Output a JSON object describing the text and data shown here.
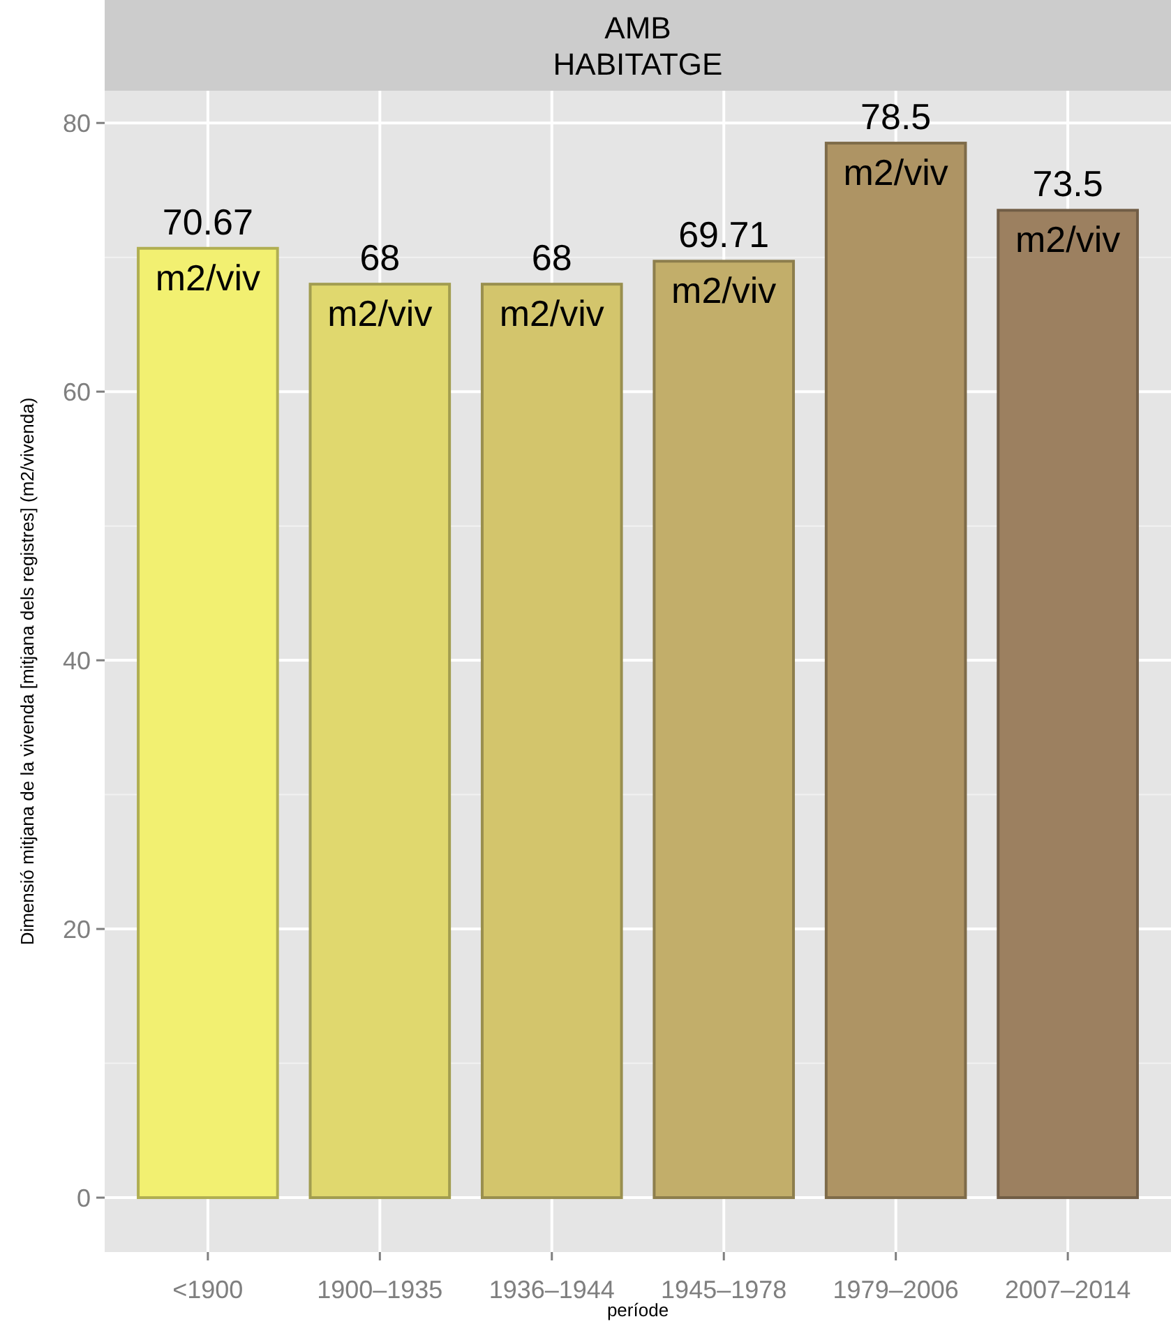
{
  "chart_data": {
    "type": "bar",
    "title": "AMB\nHABITATGE",
    "xlabel": "període",
    "ylabel": "Dimensió mitjana de la vivenda [mitjana dels registres] (m2/vivenda)",
    "categories": [
      "<1900",
      "1900–1935",
      "1936–1944",
      "1945–1978",
      "1979–2006",
      "2007–2014"
    ],
    "values": [
      70.67,
      68,
      68,
      69.71,
      78.5,
      73.5
    ],
    "value_labels": [
      "70.67\nm2/viv",
      "68\nm2/viv",
      "68\nm2/viv",
      "69.71\nm2/viv",
      "78.5\nm2/viv",
      "73.5\nm2/viv"
    ],
    "colors": [
      "#f2f071",
      "#e0d86e",
      "#d3c56c",
      "#c2ae6a",
      "#ae9464",
      "#9c8060"
    ],
    "ylim": [
      -4.05,
      82.4
    ],
    "yticks": [
      0,
      20,
      40,
      60,
      80
    ],
    "grid": true
  }
}
